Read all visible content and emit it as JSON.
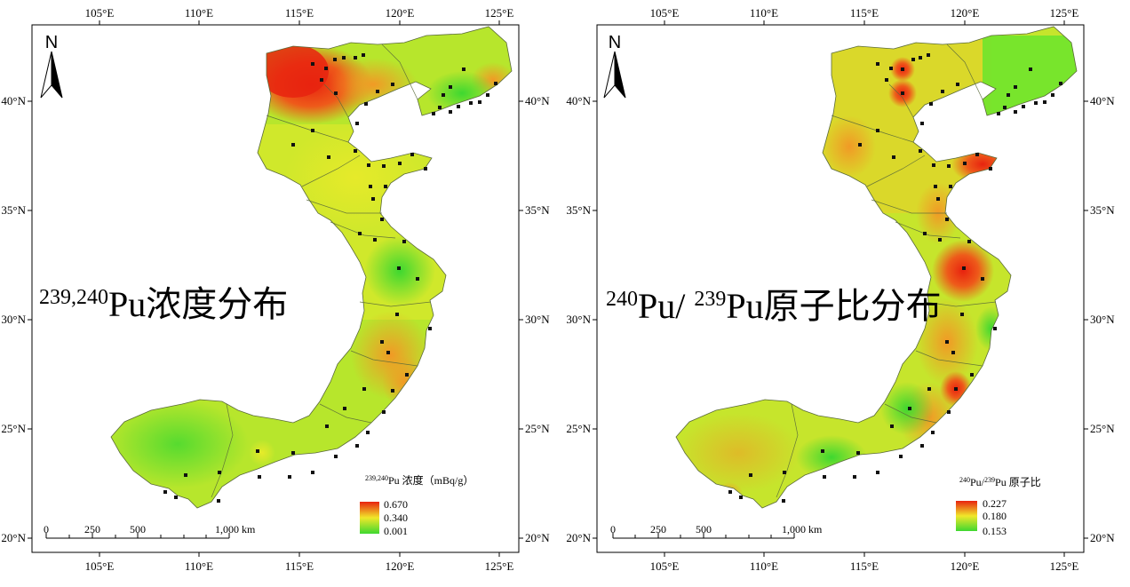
{
  "axes": {
    "lon_ticks": [
      "105°E",
      "110°E",
      "115°E",
      "120°E",
      "125°E"
    ],
    "lat_ticks": [
      "40°N",
      "35°N",
      "30°N",
      "25°N",
      "20°N"
    ]
  },
  "north_label": "N",
  "scale": {
    "labels": [
      "0",
      "250",
      "500",
      "1,000 km"
    ]
  },
  "panels": [
    {
      "id": "concentration",
      "title_sup": "239,240",
      "title_main": "Pu浓度分布",
      "legend": {
        "title_sup": "239,240",
        "title_main": "Pu 浓度（mBq/g）",
        "max": "0.670",
        "mid": "0.340",
        "min": "0.001"
      }
    },
    {
      "id": "ratio",
      "title_sup1": "240",
      "title_mid": "Pu/ ",
      "title_sup2": "239",
      "title_main": "Pu原子比分布",
      "legend": {
        "title_sup1": "240",
        "title_mid": "Pu/",
        "title_sup2": "239",
        "title_main": "Pu 原子比",
        "max": "0.227",
        "mid": "0.180",
        "min": "0.153"
      }
    }
  ],
  "colors": {
    "high": "#e8230f",
    "mid": "#f0e82a",
    "low": "#5ee62a"
  }
}
